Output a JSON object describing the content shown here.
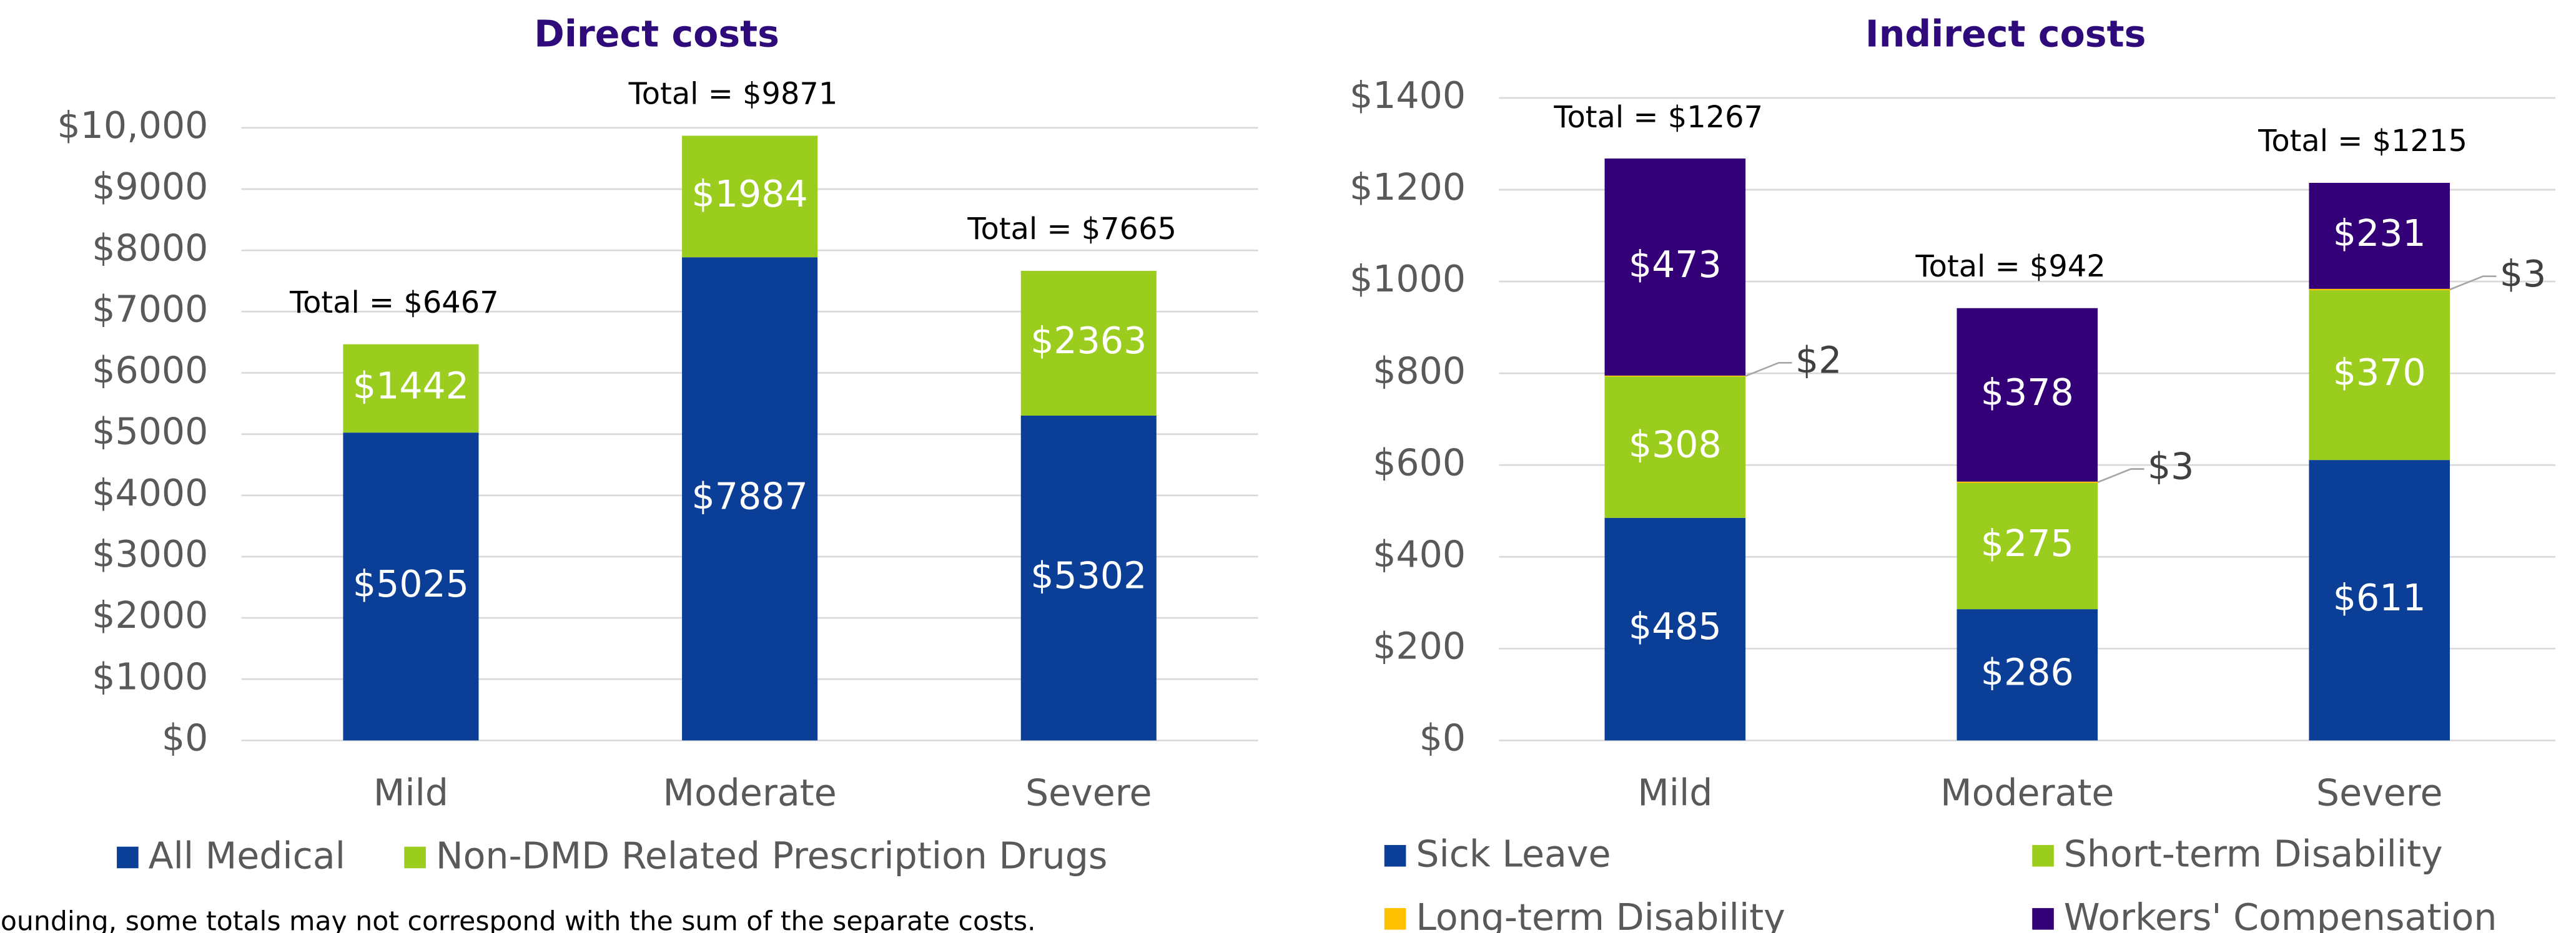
{
  "charts": [
    {
      "chart_data": {
        "type": "stacked-bar",
        "title": "Direct costs",
        "categories": [
          "Mild",
          "Moderate",
          "Severe"
        ],
        "series": [
          {
            "name": "All Medical",
            "color": "#0b3e96",
            "values": [
              5025,
              7887,
              5302
            ],
            "value_labels": [
              "$5025",
              "$7887",
              "$5302"
            ]
          },
          {
            "name": "Non-DMD Related Prescription Drugs",
            "color": "#9acd1e",
            "values": [
              1442,
              1984,
              2363
            ],
            "value_labels": [
              "$1442",
              "$1984",
              "$2363"
            ]
          }
        ],
        "totals": {
          "values": [
            6467,
            9871,
            7665
          ],
          "value_labels": [
            "Total = $6467",
            "Total = $9871",
            "Total = $7665"
          ]
        },
        "ylim": [
          0,
          10000
        ],
        "yticks": [
          {
            "value": 0,
            "label": "$0"
          },
          {
            "value": 1000,
            "label": "$1000"
          },
          {
            "value": 2000,
            "label": "$2000"
          },
          {
            "value": 3000,
            "label": "$3000"
          },
          {
            "value": 4000,
            "label": "$4000"
          },
          {
            "value": 5000,
            "label": "$5000"
          },
          {
            "value": 6000,
            "label": "$6000"
          },
          {
            "value": 7000,
            "label": "$7000"
          },
          {
            "value": 8000,
            "label": "$8000"
          },
          {
            "value": 9000,
            "label": "$9000"
          },
          {
            "value": 10000,
            "label": "$10,000"
          }
        ],
        "grid": true
      }
    },
    {
      "chart_data": {
        "type": "stacked-bar",
        "title": "Indirect costs",
        "categories": [
          "Mild",
          "Moderate",
          "Severe"
        ],
        "series": [
          {
            "name": "Sick Leave",
            "color": "#0b3e96",
            "values": [
              485,
              286,
              611
            ],
            "value_labels": [
              "$485",
              "$286",
              "$611"
            ]
          },
          {
            "name": "Short-term Disability",
            "color": "#9acd1e",
            "values": [
              308,
              275,
              370
            ],
            "value_labels": [
              "$308",
              "$275",
              "$370"
            ]
          },
          {
            "name": "Long-term Disability",
            "color": "#ffc000",
            "values": [
              2,
              3,
              3
            ],
            "value_labels": [
              "$2",
              "$3",
              "$3"
            ]
          },
          {
            "name": "Workers' Compensation",
            "color": "#330078",
            "values": [
              473,
              378,
              231
            ],
            "value_labels": [
              "$473",
              "$378",
              "$231"
            ]
          }
        ],
        "totals": {
          "values": [
            1267,
            942,
            1215
          ],
          "value_labels": [
            "Total = $1267",
            "Total = $942",
            "Total = $1215"
          ]
        },
        "ylim": [
          0,
          1400
        ],
        "yticks": [
          {
            "value": 0,
            "label": "$0"
          },
          {
            "value": 200,
            "label": "$200"
          },
          {
            "value": 400,
            "label": "$400"
          },
          {
            "value": 600,
            "label": "$600"
          },
          {
            "value": 800,
            "label": "$800"
          },
          {
            "value": 1000,
            "label": "$1000"
          },
          {
            "value": 1200,
            "label": "$1200"
          },
          {
            "value": 1400,
            "label": "$1400"
          }
        ],
        "grid": true
      }
    }
  ],
  "footnote": "ounding, some totals may not correspond with the sum of the separate costs."
}
